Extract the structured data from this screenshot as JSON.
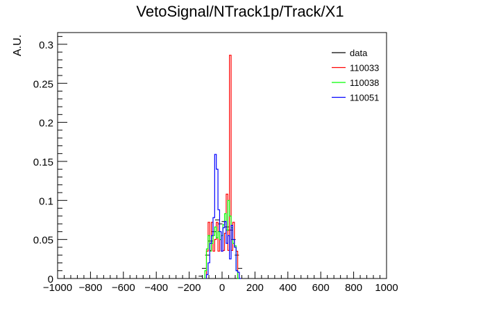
{
  "chart_data": {
    "type": "line",
    "title": "VetoSignal/NTrack1p/Track/X1",
    "xlabel": "",
    "ylabel": "A.U.",
    "xlim": [
      -1000,
      1000
    ],
    "ylim": [
      0,
      0.315
    ],
    "x_ticks": [
      "−1000",
      "−800",
      "−600",
      "−400",
      "−200",
      "0",
      "200",
      "400",
      "600",
      "800",
      "1000"
    ],
    "x_tick_values": [
      -1000,
      -800,
      -600,
      -400,
      -200,
      0,
      200,
      400,
      600,
      800,
      1000
    ],
    "y_ticks": [
      "0",
      "0.05",
      "0.1",
      "0.15",
      "0.2",
      "0.25",
      "0.3"
    ],
    "y_tick_values": [
      0,
      0.05,
      0.1,
      0.15,
      0.2,
      0.25,
      0.3
    ],
    "grid": false,
    "legend_position": "top-right",
    "series": [
      {
        "name": "data",
        "color": "#000000",
        "style": "points",
        "x": [
          -130,
          -110,
          -90,
          -70,
          -50,
          -30,
          -10,
          10,
          30,
          50,
          70,
          90,
          110
        ],
        "y": [
          0.003,
          0.013,
          0.03,
          0.048,
          0.06,
          0.075,
          0.07,
          0.073,
          0.066,
          0.062,
          0.05,
          0.03,
          0.013
        ]
      },
      {
        "name": "110033",
        "color": "#ff0000",
        "style": "step",
        "x": [
          -90,
          -80,
          -70,
          -60,
          -50,
          -40,
          -30,
          -20,
          -10,
          0,
          10,
          20,
          30,
          40,
          50,
          60,
          70,
          80,
          90,
          100
        ],
        "y": [
          0.035,
          0.072,
          0.036,
          0.072,
          0.035,
          0.05,
          0.072,
          0.035,
          0.05,
          0.035,
          0.036,
          0.058,
          0.108,
          0.036,
          0.286,
          0.036,
          0.072,
          0.04,
          0.035,
          0.0
        ]
      },
      {
        "name": "110038",
        "color": "#00ff00",
        "style": "step",
        "x": [
          -100,
          -90,
          -80,
          -70,
          -60,
          -50,
          -40,
          -30,
          -20,
          -10,
          0,
          10,
          20,
          30,
          40,
          50,
          60,
          70,
          80,
          90,
          100
        ],
        "y": [
          0.01,
          0.038,
          0.055,
          0.035,
          0.045,
          0.055,
          0.066,
          0.052,
          0.06,
          0.05,
          0.055,
          0.069,
          0.083,
          0.062,
          0.1,
          0.08,
          0.065,
          0.045,
          0.042,
          0.01,
          0.0
        ]
      },
      {
        "name": "110051",
        "color": "#0000ff",
        "style": "step",
        "x": [
          -90,
          -80,
          -70,
          -60,
          -50,
          -40,
          -30,
          -20,
          -10,
          0,
          10,
          20,
          30,
          40,
          50,
          60,
          70,
          80,
          90,
          100,
          110
        ],
        "y": [
          0.005,
          0.02,
          0.045,
          0.055,
          0.078,
          0.159,
          0.14,
          0.088,
          0.06,
          0.035,
          0.065,
          0.073,
          0.045,
          0.055,
          0.025,
          0.068,
          0.05,
          0.04,
          0.01,
          0.008,
          0.0
        ]
      }
    ]
  }
}
